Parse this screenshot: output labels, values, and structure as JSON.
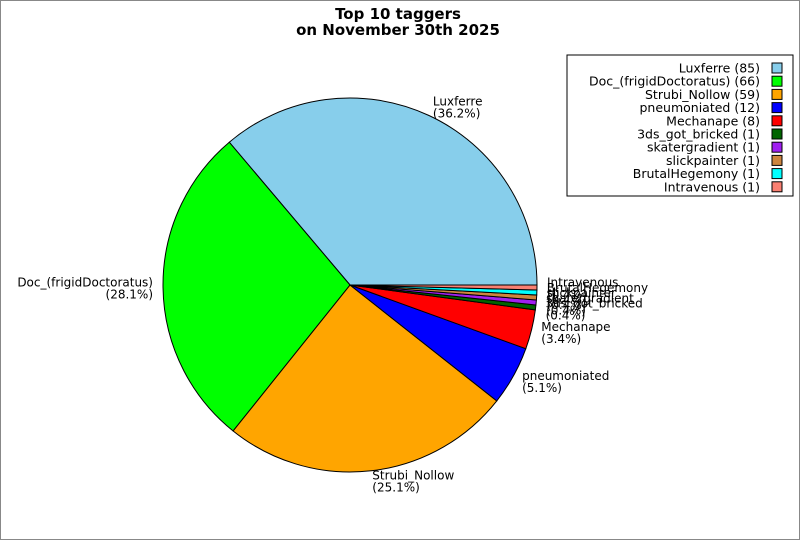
{
  "chart_data": {
    "type": "pie",
    "title": "Top 10 taggers",
    "subtitle": "on November 30th 2025",
    "legend_position": "top-right",
    "slices": [
      {
        "name": "Luxferre",
        "value": 85,
        "percent_label": "(36.2%)",
        "legend": "Luxferre (85)",
        "color": "#87ceeb"
      },
      {
        "name": "Doc_(frigidDoctoratus)",
        "value": 66,
        "percent_label": "(28.1%)",
        "legend": "Doc_(frigidDoctoratus) (66)",
        "color": "#00ff00"
      },
      {
        "name": "Strubi_Nollow",
        "value": 59,
        "percent_label": "(25.1%)",
        "legend": "Strubi_Nollow (59)",
        "color": "#ffa500"
      },
      {
        "name": "pneumoniated",
        "value": 12,
        "percent_label": "(5.1%)",
        "legend": "pneumoniated (12)",
        "color": "#0000ff"
      },
      {
        "name": "Mechanape",
        "value": 8,
        "percent_label": "(3.4%)",
        "legend": "Mechanape (8)",
        "color": "#ff0000"
      },
      {
        "name": "3ds_got_bricked",
        "value": 1,
        "percent_label": "(0.4%)",
        "legend": "3ds_got_bricked (1)",
        "color": "#006400"
      },
      {
        "name": "skatergradient",
        "value": 1,
        "percent_label": "(0.4%)",
        "legend": "skatergradient (1)",
        "color": "#a020f0"
      },
      {
        "name": "slickpainter",
        "value": 1,
        "percent_label": "(0.4%)",
        "legend": "slickpainter (1)",
        "color": "#cd853f"
      },
      {
        "name": "BrutalHegemony",
        "value": 1,
        "percent_label": "(0.4%)",
        "legend": "BrutalHegemony (1)",
        "color": "#00ffff"
      },
      {
        "name": "Intravenous",
        "value": 1,
        "percent_label": "(0.4%)",
        "legend": "Intravenous (1)",
        "color": "#fa8072"
      }
    ]
  }
}
